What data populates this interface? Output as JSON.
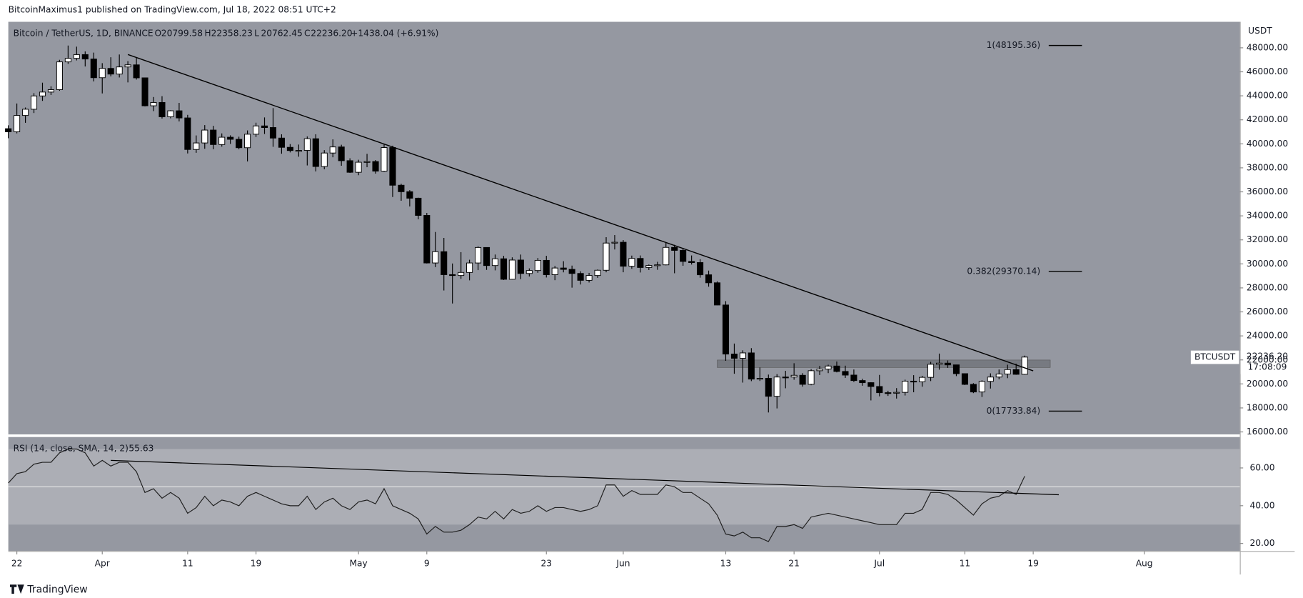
{
  "header": {
    "publisher": "BitcoinMaximus1 published on TradingView.com, Jul 18, 2022 08:51 UTC+2"
  },
  "footer": {
    "brand": "TradingView"
  },
  "chart_data": {
    "type": "candlestick",
    "title": "Bitcoin / TetherUS, 1D, BINANCE",
    "ohlc_labels": [
      "O",
      "H",
      "L",
      "C"
    ],
    "ohlc_values": [
      "20799.58",
      "22358.23",
      "20762.45",
      "22236.20"
    ],
    "change": "+1438.04 (+6.91%)",
    "x": [
      "2022-03-21",
      "2022-03-22",
      "2022-03-23",
      "2022-03-24",
      "2022-03-25",
      "2022-03-26",
      "2022-03-27",
      "2022-03-28",
      "2022-03-29",
      "2022-03-30",
      "2022-03-31",
      "2022-04-01",
      "2022-04-02",
      "2022-04-03",
      "2022-04-04",
      "2022-04-05",
      "2022-04-06",
      "2022-04-07",
      "2022-04-08",
      "2022-04-09",
      "2022-04-10",
      "2022-04-11",
      "2022-04-12",
      "2022-04-13",
      "2022-04-14",
      "2022-04-15",
      "2022-04-16",
      "2022-04-17",
      "2022-04-18",
      "2022-04-19",
      "2022-04-20",
      "2022-04-21",
      "2022-04-22",
      "2022-04-23",
      "2022-04-24",
      "2022-04-25",
      "2022-04-26",
      "2022-04-27",
      "2022-04-28",
      "2022-04-29",
      "2022-04-30",
      "2022-05-01",
      "2022-05-02",
      "2022-05-03",
      "2022-05-04",
      "2022-05-05",
      "2022-05-06",
      "2022-05-07",
      "2022-05-08",
      "2022-05-09",
      "2022-05-10",
      "2022-05-11",
      "2022-05-12",
      "2022-05-13",
      "2022-05-14",
      "2022-05-15",
      "2022-05-16",
      "2022-05-17",
      "2022-05-18",
      "2022-05-19",
      "2022-05-20",
      "2022-05-21",
      "2022-05-22",
      "2022-05-23",
      "2022-05-24",
      "2022-05-25",
      "2022-05-26",
      "2022-05-27",
      "2022-05-28",
      "2022-05-29",
      "2022-05-30",
      "2022-05-31",
      "2022-06-01",
      "2022-06-02",
      "2022-06-03",
      "2022-06-04",
      "2022-06-05",
      "2022-06-06",
      "2022-06-07",
      "2022-06-08",
      "2022-06-09",
      "2022-06-10",
      "2022-06-11",
      "2022-06-12",
      "2022-06-13",
      "2022-06-14",
      "2022-06-15",
      "2022-06-16",
      "2022-06-17",
      "2022-06-18",
      "2022-06-19",
      "2022-06-20",
      "2022-06-21",
      "2022-06-22",
      "2022-06-23",
      "2022-06-24",
      "2022-06-25",
      "2022-06-26",
      "2022-06-27",
      "2022-06-28",
      "2022-06-29",
      "2022-06-30",
      "2022-07-01",
      "2022-07-02",
      "2022-07-03",
      "2022-07-04",
      "2022-07-05",
      "2022-07-06",
      "2022-07-07",
      "2022-07-08",
      "2022-07-09",
      "2022-07-10",
      "2022-07-11",
      "2022-07-12",
      "2022-07-13",
      "2022-07-14",
      "2022-07-15",
      "2022-07-16",
      "2022-07-17",
      "2022-07-18"
    ],
    "open": [
      41262,
      41002,
      42364,
      42882,
      43991,
      44313,
      44511,
      46827,
      47122,
      47434,
      47067,
      45510,
      46283,
      45811,
      46407,
      46580,
      45497,
      43170,
      43444,
      42252,
      42753,
      42158,
      39530,
      40074,
      41147,
      39942,
      40551,
      40378,
      39678,
      40801,
      41493,
      41358,
      40480,
      39709,
      39441,
      39450,
      40426,
      38112,
      39235,
      39742,
      38596,
      37630,
      38468,
      38525,
      37728,
      39690,
      36552,
      36013,
      35472,
      34038,
      30076,
      31017,
      29103,
      29030,
      29287,
      30075,
      31366,
      29860,
      30425,
      28715,
      30319,
      29201,
      29445,
      30293,
      29099,
      29655,
      29542,
      29201,
      28629,
      29031,
      29469,
      31734,
      31801,
      29805,
      30452,
      29700,
      29865,
      29919,
      31373,
      31125,
      30204,
      30109,
      29091,
      28424,
      26574,
      22487,
      22136,
      22583,
      20401,
      20468,
      18970,
      20574,
      20573,
      20719,
      19965,
      21100,
      21232,
      21490,
      21038,
      20736,
      20280,
      20105,
      19784,
      19270,
      19243,
      19298,
      20231,
      20175,
      20548,
      21637,
      21731,
      21587,
      20854,
      19963,
      19329,
      20212,
      20573,
      20826,
      21195,
      20799.58
    ],
    "high": [
      41544,
      43361,
      43025,
      44220,
      45094,
      44792,
      46999,
      48189,
      48096,
      47700,
      47600,
      46720,
      47213,
      47444,
      46890,
      47200,
      45507,
      43900,
      43970,
      42800,
      43410,
      42414,
      40699,
      41561,
      41500,
      40870,
      40709,
      40595,
      41116,
      41760,
      42199,
      42976,
      40795,
      39980,
      39940,
      40616,
      40797,
      39474,
      40372,
      39925,
      38795,
      38675,
      39167,
      38651,
      40023,
      39845,
      36675,
      36146,
      35514,
      34243,
      32658,
      32162,
      30032,
      30976,
      30343,
      31460,
      31369,
      30780,
      30666,
      30545,
      30777,
      29625,
      30487,
      30670,
      29830,
      30223,
      29856,
      29387,
      29250,
      29530,
      32222,
      32399,
      31982,
      30689,
      30700,
      29950,
      30172,
      31765,
      31589,
      31327,
      30700,
      30392,
      29440,
      28544,
      26895,
      23362,
      22800,
      22980,
      21365,
      20777,
      20815,
      21090,
      21723,
      20894,
      21233,
      21500,
      21600,
      21868,
      21520,
      21200,
      20433,
      20142,
      20750,
      19430,
      19650,
      20354,
      20729,
      20675,
      21838,
      22527,
      21956,
      21600,
      20867,
      20062,
      20300,
      20882,
      21200,
      21600,
      21685,
      22358.23
    ],
    "low": [
      40467,
      40875,
      41751,
      42566,
      43579,
      44071,
      44421,
      46663,
      46950,
      46445,
      45200,
      44200,
      45620,
      45530,
      45118,
      45353,
      43121,
      42727,
      42107,
      42125,
      41868,
      39200,
      39254,
      39588,
      39551,
      39766,
      39991,
      39546,
      38536,
      40571,
      40820,
      39751,
      39177,
      39285,
      38929,
      38200,
      37702,
      37881,
      38881,
      38175,
      37578,
      37386,
      38052,
      37517,
      37670,
      35571,
      35258,
      34785,
      33713,
      30033,
      29730,
      27785,
      26700,
      28751,
      28630,
      29480,
      29500,
      29460,
      28654,
      28693,
      28730,
      28950,
      29255,
      28866,
      28640,
      29294,
      28019,
      28282,
      28450,
      28839,
      29299,
      31200,
      29301,
      29594,
      29282,
      29485,
      29507,
      29880,
      29218,
      29843,
      29944,
      28850,
      28099,
      26560,
      21925,
      20846,
      20111,
      20232,
      20246,
      17622,
      17960,
      19637,
      20348,
      19770,
      19891,
      20740,
      20900,
      20960,
      20500,
      20163,
      19849,
      18626,
      18966,
      19000,
      18780,
      19036,
      19304,
      19766,
      20236,
      21186,
      21336,
      20650,
      19900,
      19235,
      18910,
      19616,
      20385,
      20480,
      20760,
      20762.45
    ],
    "close": [
      41002,
      42364,
      42882,
      43991,
      44313,
      44511,
      46827,
      47122,
      47434,
      47067,
      45510,
      46283,
      45811,
      46407,
      46580,
      45497,
      43170,
      43444,
      42252,
      42753,
      42158,
      39530,
      40074,
      41147,
      39942,
      40551,
      40378,
      39678,
      40801,
      41493,
      41358,
      40480,
      39709,
      39441,
      39450,
      40426,
      38112,
      39235,
      39742,
      38596,
      37630,
      38468,
      38525,
      37728,
      39690,
      36552,
      36013,
      35472,
      34038,
      30076,
      31017,
      29103,
      29030,
      29287,
      30075,
      31366,
      29860,
      30425,
      28715,
      30319,
      29201,
      29445,
      30293,
      29099,
      29655,
      29542,
      29201,
      28629,
      29031,
      29469,
      31734,
      31801,
      29805,
      30452,
      29700,
      29865,
      29919,
      31373,
      31125,
      30204,
      30109,
      29091,
      28424,
      26574,
      22487,
      22136,
      22583,
      20401,
      20468,
      18970,
      20574,
      20573,
      20719,
      19965,
      21100,
      21232,
      21490,
      21038,
      20736,
      20280,
      20105,
      19784,
      19270,
      19243,
      19298,
      20231,
      20175,
      20548,
      21637,
      21731,
      21587,
      20854,
      19963,
      19329,
      20212,
      20573,
      20826,
      21195,
      20799,
      22236.2
    ],
    "xlim": [
      "2022-03-21",
      "2022-08-12"
    ],
    "xticks": [
      {
        "value": "2022-03-22",
        "label": "22"
      },
      {
        "value": "2022-04-01",
        "label": "Apr"
      },
      {
        "value": "2022-04-11",
        "label": "11"
      },
      {
        "value": "2022-04-19",
        "label": "19"
      },
      {
        "value": "2022-05-01",
        "label": "May"
      },
      {
        "value": "2022-05-09",
        "label": "9"
      },
      {
        "value": "2022-05-23",
        "label": "23"
      },
      {
        "value": "2022-06-01",
        "label": "Jun"
      },
      {
        "value": "2022-06-13",
        "label": "13"
      },
      {
        "value": "2022-06-21",
        "label": "21"
      },
      {
        "value": "2022-07-01",
        "label": "Jul"
      },
      {
        "value": "2022-07-11",
        "label": "11"
      },
      {
        "value": "2022-07-19",
        "label": "19"
      },
      {
        "value": "2022-08-01",
        "label": "Aug"
      }
    ],
    "ylim": [
      15790,
      50166
    ],
    "yticks": [
      {
        "value": 16000,
        "label": "16000.00"
      },
      {
        "value": 18000,
        "label": "18000.00"
      },
      {
        "value": 20000,
        "label": "20000.00"
      },
      {
        "value": 22000,
        "label": "22000.00"
      },
      {
        "value": 24000,
        "label": "24000.00"
      },
      {
        "value": 26000,
        "label": "26000.00"
      },
      {
        "value": 28000,
        "label": "28000.00"
      },
      {
        "value": 30000,
        "label": "30000.00"
      },
      {
        "value": 32000,
        "label": "32000.00"
      },
      {
        "value": 34000,
        "label": "34000.00"
      },
      {
        "value": 36000,
        "label": "36000.00"
      },
      {
        "value": 38000,
        "label": "38000.00"
      },
      {
        "value": 40000,
        "label": "40000.00"
      },
      {
        "value": 42000,
        "label": "42000.00"
      },
      {
        "value": 44000,
        "label": "44000.00"
      },
      {
        "value": 46000,
        "label": "46000.00"
      },
      {
        "value": 48000,
        "label": "48000.00"
      }
    ],
    "y_axis_label": "USDT",
    "symbol_tag": "BTCUSDT",
    "last_price": "22236.20",
    "countdown": "17:08:09",
    "fib_levels": [
      {
        "value": 48195.36,
        "label": "1(48195.36)"
      },
      {
        "value": 29370.14,
        "label": "0.382(29370.14)"
      },
      {
        "value": 17733.84,
        "label": "0(17733.84)"
      }
    ],
    "trendline": {
      "x": [
        "2022-04-04",
        "2022-07-19"
      ],
      "y": [
        47440,
        21090
      ]
    },
    "zone": {
      "x": [
        "2022-06-12",
        "2022-07-21"
      ],
      "y": [
        21370,
        21990
      ]
    },
    "rsi": {
      "title": "RSI (14, close, SMA, 14, 2)",
      "last": "55.63",
      "values": [
        52,
        57,
        58,
        62,
        63,
        63,
        68,
        70,
        70,
        68,
        61,
        64,
        61,
        63,
        63,
        58,
        47,
        49,
        44,
        47,
        44,
        36,
        39,
        45,
        40,
        43,
        42,
        40,
        45,
        47,
        45,
        43,
        41,
        40,
        40,
        45,
        38,
        42,
        44,
        40,
        38,
        42,
        43,
        41,
        49,
        40,
        38,
        36,
        33,
        25,
        29,
        26,
        26,
        27,
        30,
        34,
        33,
        37,
        33,
        38,
        36,
        37,
        40,
        37,
        39,
        39,
        38,
        37,
        38,
        40,
        51,
        51,
        45,
        48,
        46,
        46,
        46,
        51,
        50,
        47,
        47,
        44,
        41,
        35,
        25,
        24,
        26,
        23,
        23,
        21,
        29,
        29,
        30,
        28,
        34,
        35,
        36,
        35,
        34,
        33,
        32,
        31,
        30,
        30,
        30,
        36,
        36,
        38,
        47,
        47,
        46,
        43,
        39,
        35,
        41,
        44,
        45,
        48,
        46,
        55.63
      ],
      "ylim": [
        16,
        76.4
      ],
      "yticks": [
        {
          "value": 20,
          "label": "20.00"
        },
        {
          "value": 40,
          "label": "40.00"
        },
        {
          "value": 60,
          "label": "60.00"
        }
      ],
      "band": [
        30,
        70
      ],
      "midline": 50,
      "trendline": {
        "x": [
          "2022-04-02",
          "2022-07-22"
        ],
        "y": [
          64,
          45.8
        ]
      }
    }
  }
}
